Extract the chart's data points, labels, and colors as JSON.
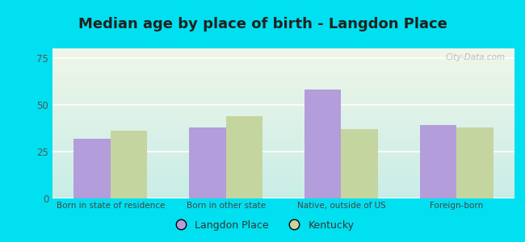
{
  "title": "Median age by place of birth - Langdon Place",
  "categories": [
    "Born in state of residence",
    "Born in other state",
    "Native, outside of US",
    "Foreign-born"
  ],
  "langdon_values": [
    32,
    38,
    58,
    39
  ],
  "kentucky_values": [
    36,
    44,
    37,
    38
  ],
  "langdon_color": "#b39ddb",
  "kentucky_color": "#c5d5a0",
  "background_outer": "#00e0f0",
  "background_inner_top": "#f0f5e8",
  "background_inner_bottom": "#c8ede6",
  "ylim": [
    0,
    80
  ],
  "yticks": [
    0,
    25,
    50,
    75
  ],
  "legend_labels": [
    "Langdon Place",
    "Kentucky"
  ],
  "bar_width": 0.32,
  "title_fontsize": 13,
  "title_color": "#222222",
  "watermark": "City-Data.com"
}
